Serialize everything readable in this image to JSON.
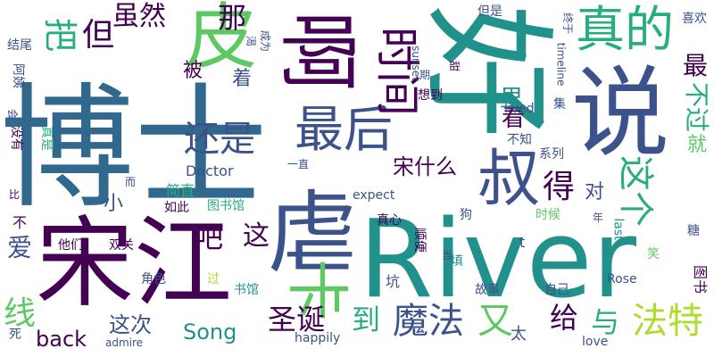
{
  "palette": {
    "background": "#ffffff",
    "dark_purple": "#440154",
    "indigo": "#3b528b",
    "slate_blue": "#31688e",
    "teal": "#21918c",
    "sea_green": "#27ad81",
    "green": "#5ec962",
    "lime": "#addc30",
    "yellow": "#fde725"
  },
  "words": [
    {
      "text": "博士",
      "color": "#31688e",
      "size": 150,
      "rot": 0
    },
    {
      "text": "好",
      "color": "#21918c",
      "size": 150,
      "rot": 90
    },
    {
      "text": "River",
      "color": "#21918c",
      "size": 120,
      "rot": 0
    },
    {
      "text": "宋江",
      "color": "#440154",
      "size": 110,
      "rot": 0
    },
    {
      "text": "说",
      "color": "#3b528b",
      "size": 110,
      "rot": 0
    },
    {
      "text": "虐",
      "color": "#3b528b",
      "size": 100,
      "rot": 0
    },
    {
      "text": "啊",
      "color": "#440154",
      "size": 90,
      "rot": 90
    },
    {
      "text": "皮",
      "color": "#5ec962",
      "size": 80,
      "rot": 0
    },
    {
      "text": "叔",
      "color": "#3b528b",
      "size": 70,
      "rot": 0
    },
    {
      "text": "卡",
      "color": "#5ec962",
      "size": 70,
      "rot": 90
    },
    {
      "text": "最后",
      "color": "#3b528b",
      "size": 55,
      "rot": 0
    },
    {
      "text": "真的",
      "color": "#27ad81",
      "size": 55,
      "rot": 0
    },
    {
      "text": "时间",
      "color": "#440154",
      "size": 50,
      "rot": 90
    },
    {
      "text": "把",
      "color": "#27ad81",
      "size": 38,
      "rot": 90
    },
    {
      "text": "但",
      "color": "#440154",
      "size": 36,
      "rot": 0
    },
    {
      "text": "那",
      "color": "#440154",
      "size": 32,
      "rot": 0
    },
    {
      "text": "还是",
      "color": "#3b528b",
      "size": 40,
      "rot": 0
    },
    {
      "text": "虽然",
      "color": "#440154",
      "size": 30,
      "rot": 0
    },
    {
      "text": "魔法",
      "color": "#3b528b",
      "size": 40,
      "rot": 0
    },
    {
      "text": "法特",
      "color": "#addc30",
      "size": 40,
      "rot": 0
    },
    {
      "text": "这个",
      "color": "#27ad81",
      "size": 40,
      "rot": 90
    },
    {
      "text": "得",
      "color": "#440154",
      "size": 36,
      "rot": 0
    },
    {
      "text": "宋什么",
      "color": "#440154",
      "size": 24,
      "rot": 0
    },
    {
      "text": "最",
      "color": "#440154",
      "size": 28,
      "rot": 0
    },
    {
      "text": "不过",
      "color": "#27ad81",
      "size": 28,
      "rot": 90
    },
    {
      "text": "看",
      "color": "#440154",
      "size": 26,
      "rot": 0
    },
    {
      "text": "里",
      "color": "#21918c",
      "size": 26,
      "rot": 0
    },
    {
      "text": "被",
      "color": "#440154",
      "size": 22,
      "rot": 0
    },
    {
      "text": "着",
      "color": "#3b528b",
      "size": 22,
      "rot": 0
    },
    {
      "text": "小",
      "color": "#3b528b",
      "size": 22,
      "rot": 0
    },
    {
      "text": "爱",
      "color": "#3b528b",
      "size": 28,
      "rot": 0
    },
    {
      "text": "吧",
      "color": "#440154",
      "size": 32,
      "rot": 0
    },
    {
      "text": "这",
      "color": "#440154",
      "size": 30,
      "rot": 0
    },
    {
      "text": "线",
      "color": "#5ec962",
      "size": 36,
      "rot": 0
    },
    {
      "text": "到",
      "color": "#27ad81",
      "size": 32,
      "rot": 0
    },
    {
      "text": "又",
      "color": "#5ec962",
      "size": 40,
      "rot": 0
    },
    {
      "text": "给",
      "color": "#440154",
      "size": 32,
      "rot": 0
    },
    {
      "text": "与",
      "color": "#27ad81",
      "size": 32,
      "rot": 0
    },
    {
      "text": "圣诞",
      "color": "#440154",
      "size": 32,
      "rot": 0
    },
    {
      "text": "对",
      "color": "#3b528b",
      "size": 22,
      "rot": 0
    },
    {
      "text": "就",
      "color": "#5ec962",
      "size": 22,
      "rot": 0
    },
    {
      "text": "这次",
      "color": "#3b528b",
      "size": 24,
      "rot": 0
    },
    {
      "text": "back",
      "color": "#440154",
      "size": 24,
      "rot": 0
    },
    {
      "text": "Song",
      "color": "#21918c",
      "size": 24,
      "rot": 0
    },
    {
      "text": "Doctor",
      "color": "#3b528b",
      "size": 16,
      "rot": 0
    },
    {
      "text": "简直",
      "color": "#27ad81",
      "size": 16,
      "rot": 0
    },
    {
      "text": "图书馆",
      "color": "#27ad81",
      "size": 14,
      "rot": 0
    },
    {
      "text": "图书",
      "color": "#440154",
      "size": 16,
      "rot": 90
    },
    {
      "text": "书馆",
      "color": "#21918c",
      "size": 14,
      "rot": 0
    },
    {
      "text": "expect",
      "color": "#3b528b",
      "size": 14,
      "rot": 0
    },
    {
      "text": "lived",
      "color": "#3b528b",
      "size": 14,
      "rot": 0
    },
    {
      "text": "sunset",
      "color": "#3b528b",
      "size": 12,
      "rot": 90
    },
    {
      "text": "timeline",
      "color": "#3b528b",
      "size": 12,
      "rot": 90
    },
    {
      "text": "happily",
      "color": "#3b528b",
      "size": 14,
      "rot": 0
    },
    {
      "text": "love",
      "color": "#3b528b",
      "size": 14,
      "rot": 0
    },
    {
      "text": "Rose",
      "color": "#3b528b",
      "size": 14,
      "rot": 0
    },
    {
      "text": "last",
      "color": "#21918c",
      "size": 14,
      "rot": 90
    },
    {
      "text": "admire",
      "color": "#3b528b",
      "size": 12,
      "rot": 0
    },
    {
      "text": "t",
      "color": "#3b528b",
      "size": 16,
      "rot": 0
    },
    {
      "text": "他们",
      "color": "#440154",
      "size": 14,
      "rot": 0
    },
    {
      "text": "双关",
      "color": "#440154",
      "size": 14,
      "rot": 0
    },
    {
      "text": "角色",
      "color": "#3b528b",
      "size": 14,
      "rot": 0
    },
    {
      "text": "过",
      "color": "#addc30",
      "size": 14,
      "rot": 0
    },
    {
      "text": "坑",
      "color": "#3b528b",
      "size": 16,
      "rot": 0
    },
    {
      "text": "故事",
      "color": "#3b528b",
      "size": 14,
      "rot": 0
    },
    {
      "text": "自己",
      "color": "#3b528b",
      "size": 14,
      "rot": 0
    },
    {
      "text": "太",
      "color": "#3b528b",
      "size": 18,
      "rot": 0
    },
    {
      "text": "笑",
      "color": "#5ec962",
      "size": 14,
      "rot": 0
    },
    {
      "text": "糖",
      "color": "#3b528b",
      "size": 14,
      "rot": 0
    },
    {
      "text": "年",
      "color": "#3b528b",
      "size": 12,
      "rot": 0
    },
    {
      "text": "时候",
      "color": "#5ec962",
      "size": 14,
      "rot": 0
    },
    {
      "text": "系列",
      "color": "#3b528b",
      "size": 14,
      "rot": 0
    },
    {
      "text": "不知",
      "color": "#3b528b",
      "size": 14,
      "rot": 0
    },
    {
      "text": "一直",
      "color": "#3b528b",
      "size": 12,
      "rot": 0
    },
    {
      "text": "狗",
      "color": "#3b528b",
      "size": 14,
      "rot": 0
    },
    {
      "text": "真心",
      "color": "#440154",
      "size": 14,
      "rot": 0
    },
    {
      "text": "顺便",
      "color": "#440154",
      "size": 14,
      "rot": 90
    },
    {
      "text": "填",
      "color": "#21918c",
      "size": 14,
      "rot": 0
    },
    {
      "text": "当",
      "color": "#3b528b",
      "size": 12,
      "rot": 0
    },
    {
      "text": "而",
      "color": "#3b528b",
      "size": 12,
      "rot": 0
    },
    {
      "text": "如此",
      "color": "#440154",
      "size": 14,
      "rot": 0
    },
    {
      "text": "集",
      "color": "#3b528b",
      "size": 14,
      "rot": 0
    },
    {
      "text": "想到",
      "color": "#440154",
      "size": 14,
      "rot": 0
    },
    {
      "text": "甜",
      "color": "#440154",
      "size": 12,
      "rot": 90
    },
    {
      "text": "但是",
      "color": "#3b528b",
      "size": 14,
      "rot": 0
    },
    {
      "text": "终于",
      "color": "#3b528b",
      "size": 12,
      "rot": 90
    },
    {
      "text": "期",
      "color": "#3b528b",
      "size": 12,
      "rot": 0
    },
    {
      "text": "喜欢",
      "color": "#3b528b",
      "size": 14,
      "rot": 0
    },
    {
      "text": "结尾",
      "color": "#3b528b",
      "size": 14,
      "rot": 0
    },
    {
      "text": "阿姨",
      "color": "#3b528b",
      "size": 14,
      "rot": 90
    },
    {
      "text": "会",
      "color": "#3b528b",
      "size": 12,
      "rot": 90
    },
    {
      "text": "没有",
      "color": "#440154",
      "size": 14,
      "rot": 90
    },
    {
      "text": "真是",
      "color": "#27ad81",
      "size": 14,
      "rot": 90
    },
    {
      "text": "比",
      "color": "#440154",
      "size": 12,
      "rot": 0
    },
    {
      "text": "不",
      "color": "#440154",
      "size": 16,
      "rot": 0
    },
    {
      "text": "死",
      "color": "#3b528b",
      "size": 14,
      "rot": 0
    },
    {
      "text": "渴",
      "color": "#3b528b",
      "size": 12,
      "rot": 90
    },
    {
      "text": "成为",
      "color": "#3b528b",
      "size": 12,
      "rot": 90
    }
  ]
}
